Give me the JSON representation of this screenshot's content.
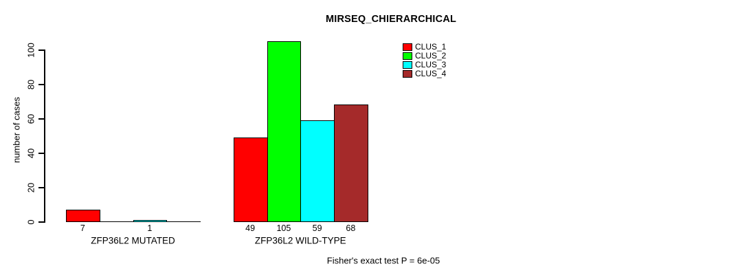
{
  "chart_data": {
    "type": "bar",
    "title": "MIRSEQ_CHIERARCHICAL",
    "ylabel": "number of cases",
    "footnote": "Fisher's exact test P = 6e-05",
    "yticks": [
      0,
      20,
      40,
      60,
      80,
      100
    ],
    "ylim": [
      0,
      105
    ],
    "grid": false,
    "legend_position": "top-right",
    "legend": [
      {
        "name": "CLUS_1",
        "color": "#FF0000"
      },
      {
        "name": "CLUS_2",
        "color": "#00FF00"
      },
      {
        "name": "CLUS_3",
        "color": "#00FFFF"
      },
      {
        "name": "CLUS_4",
        "color": "#A52A2A"
      }
    ],
    "groups": [
      {
        "label": "ZFP36L2 MUTATED",
        "values": [
          7,
          0,
          1,
          0
        ],
        "bar_labels": [
          "7",
          "",
          "1",
          ""
        ]
      },
      {
        "label": "ZFP36L2 WILD-TYPE",
        "values": [
          49,
          105,
          59,
          68
        ],
        "bar_labels": [
          "49",
          "105",
          "59",
          "68"
        ]
      }
    ]
  }
}
